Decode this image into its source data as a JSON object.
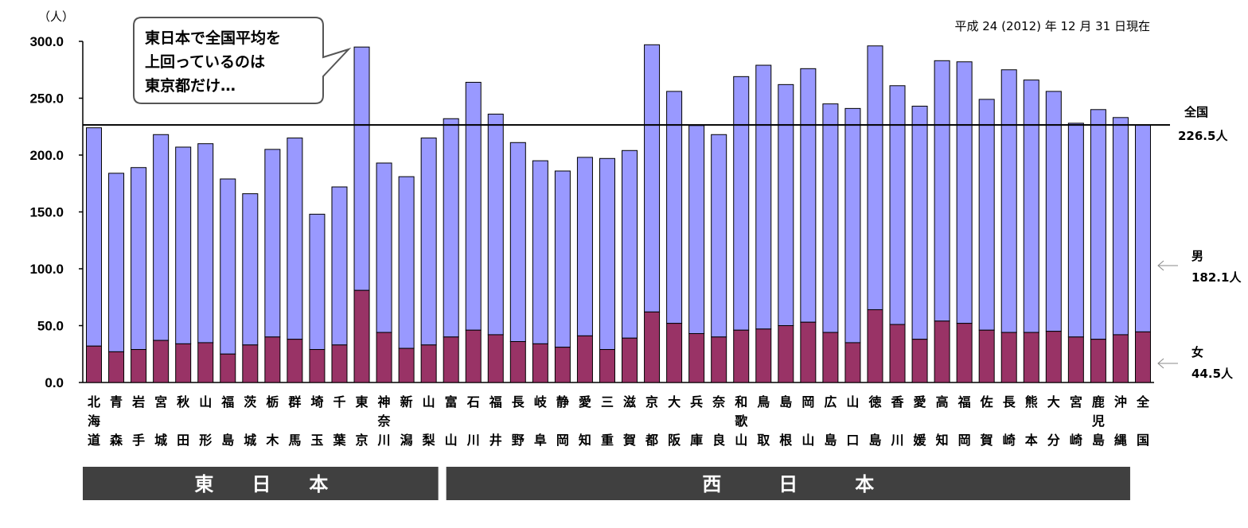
{
  "chart_data": {
    "type": "bar",
    "stacked": true,
    "yunit": "（人）",
    "ylim": [
      0,
      300
    ],
    "yticks": [
      "300.0",
      "250.0",
      "200.0",
      "150.0",
      "100.0",
      "50.0",
      "0.0"
    ],
    "date_note": "平成 24 (2012) 年 12 月 31 日現在",
    "categories": [
      "北海道",
      "青森",
      "岩手",
      "宮城",
      "秋田",
      "山形",
      "福島",
      "茨城",
      "栃木",
      "群馬",
      "埼玉",
      "千葉",
      "東京",
      "神奈川",
      "新潟",
      "山梨",
      "富山",
      "石川",
      "福井",
      "長野",
      "岐阜",
      "静岡",
      "愛知",
      "三重",
      "滋賀",
      "京都",
      "大阪",
      "兵庫",
      "奈良",
      "和歌山",
      "鳥取",
      "島根",
      "岡山",
      "広島",
      "山口",
      "徳島",
      "香川",
      "愛媛",
      "高知",
      "福岡",
      "佐賀",
      "長崎",
      "熊本",
      "大分",
      "宮崎",
      "鹿児島",
      "沖縄",
      "全国"
    ],
    "series": [
      {
        "name": "女",
        "color": "#993366",
        "values": [
          32,
          27,
          29,
          37,
          34,
          35,
          25,
          33,
          40,
          38,
          29,
          33,
          81,
          44,
          30,
          33,
          40,
          46,
          42,
          36,
          34,
          31,
          41,
          29,
          39,
          62,
          52,
          43,
          40,
          46,
          47,
          50,
          53,
          44,
          35,
          64,
          51,
          38,
          54,
          52,
          46,
          44,
          44,
          45,
          40,
          38,
          42,
          44.5
        ]
      },
      {
        "name": "男",
        "color": "#9999ff",
        "values": [
          192,
          157,
          160,
          181,
          173,
          175,
          154,
          133,
          165,
          177,
          119,
          139,
          214,
          149,
          151,
          182,
          192,
          218,
          194,
          175,
          161,
          155,
          157,
          168,
          165,
          235,
          204,
          183,
          178,
          223,
          232,
          212,
          223,
          201,
          206,
          232,
          210,
          205,
          229,
          230,
          203,
          231,
          222,
          211,
          188,
          202,
          191,
          182.1
        ]
      }
    ],
    "totals": [
      224,
      184,
      189,
      218,
      207,
      210,
      179,
      166,
      205,
      215,
      148,
      172,
      295,
      193,
      181,
      215,
      232,
      264,
      236,
      211,
      195,
      186,
      198,
      197,
      204,
      297,
      256,
      226,
      218,
      269,
      279,
      262,
      276,
      245,
      241,
      296,
      261,
      243,
      283,
      282,
      249,
      275,
      266,
      256,
      228,
      240,
      233,
      226.5
    ],
    "reference_line": {
      "value": 226.5,
      "label": "全国",
      "value_label": "226.5人"
    },
    "side_labels": {
      "male": {
        "label": "男",
        "value": "182.1人"
      },
      "female": {
        "label": "女",
        "value": "44.5人"
      }
    },
    "region_bands": [
      {
        "label": "東　　日　　本",
        "color": "#404040"
      },
      {
        "label": "西　　　日　　　本",
        "color": "#404040"
      }
    ],
    "callout": {
      "lines": [
        "東日本で全国平均を",
        "上回っているのは",
        "東京都だけ…"
      ]
    }
  }
}
